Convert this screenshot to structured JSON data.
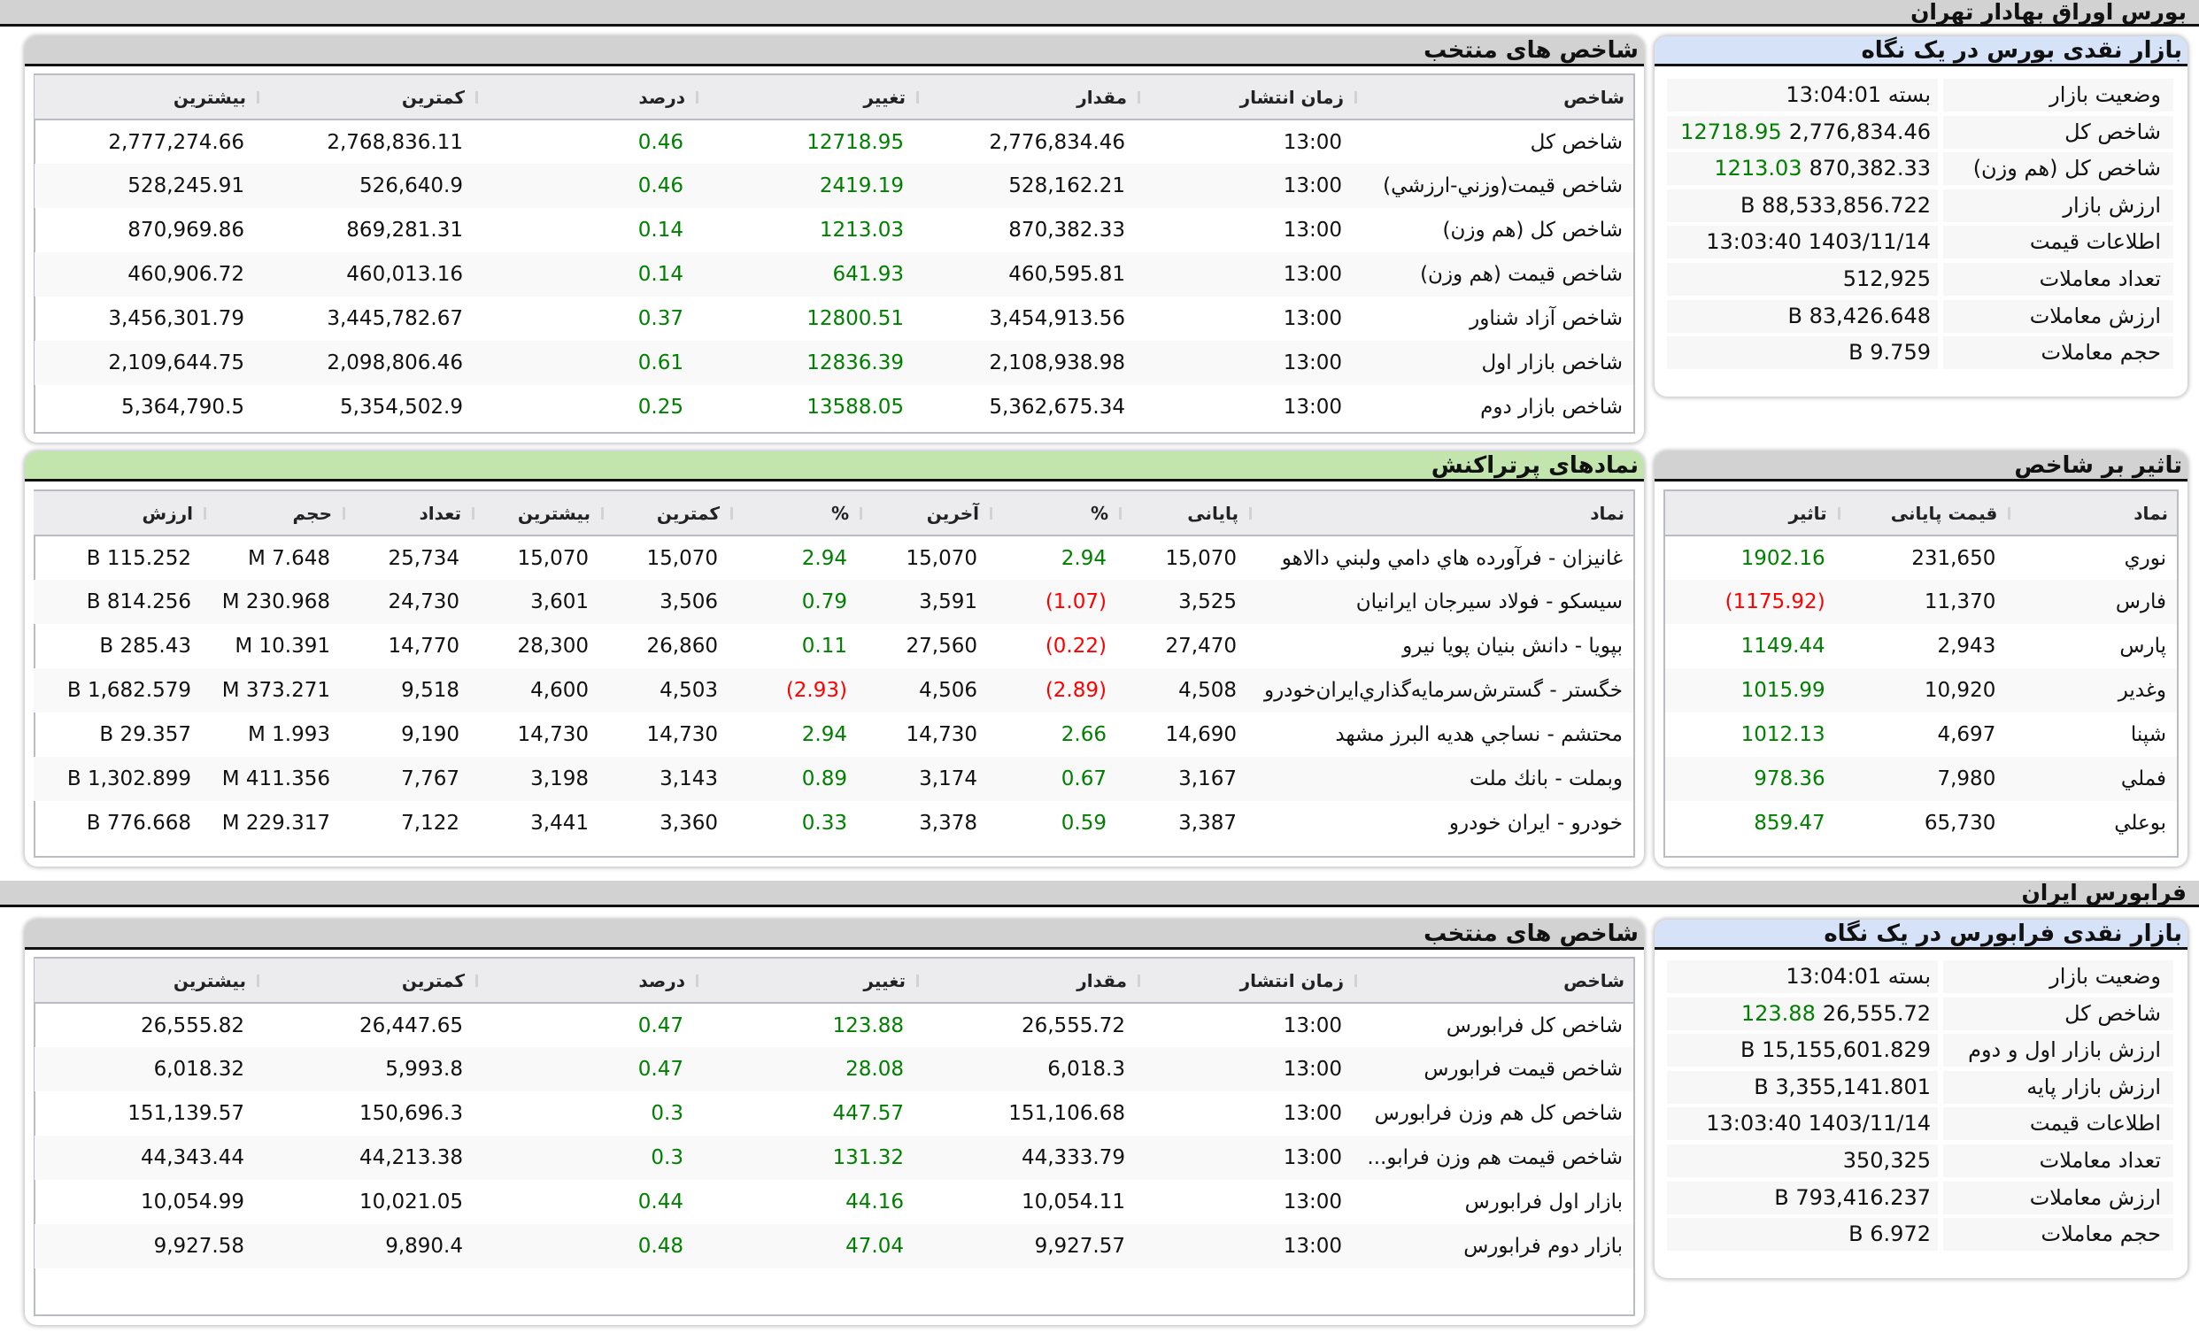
{
  "tse": {
    "title": "بورس اوراق بهادار تهران",
    "summary": {
      "title": "بازار نقدی بورس در یک نگاه",
      "rows": [
        {
          "label": "وضعیت بازار",
          "value": "بسته 13:04:01",
          "change": ""
        },
        {
          "label": "شاخص کل",
          "value": "2,776,834.46",
          "change": "12718.95"
        },
        {
          "label": "شاخص کل (هم وزن)",
          "value": "870,382.33",
          "change": "1213.03"
        },
        {
          "label": "ارزش بازار",
          "value": "88,533,856.722 B",
          "change": ""
        },
        {
          "label": "اطلاعات قیمت",
          "value": "1403/11/14 13:03:40",
          "change": ""
        },
        {
          "label": "تعداد معاملات",
          "value": "512,925",
          "change": ""
        },
        {
          "label": "ارزش معاملات",
          "value": "83,426.648 B",
          "change": ""
        },
        {
          "label": "حجم معاملات",
          "value": "9.759 B",
          "change": ""
        }
      ]
    },
    "indices": {
      "title": "شاخص های منتخب",
      "columns": [
        "شاخص",
        "زمان انتشار",
        "مقدار",
        "تغییر",
        "درصد",
        "کمترین",
        "بیشترین"
      ],
      "rows": [
        [
          "شاخص کل",
          "13:00",
          "2,776,834.46",
          "12718.95",
          "0.46",
          "2,768,836.11",
          "2,777,274.66"
        ],
        [
          "شاخص قيمت(وزني-ارزشي)",
          "13:00",
          "528,162.21",
          "2419.19",
          "0.46",
          "526,640.9",
          "528,245.91"
        ],
        [
          "شاخص کل (هم وزن)",
          "13:00",
          "870,382.33",
          "1213.03",
          "0.14",
          "869,281.31",
          "870,969.86"
        ],
        [
          "شاخص قیمت (هم وزن)",
          "13:00",
          "460,595.81",
          "641.93",
          "0.14",
          "460,013.16",
          "460,906.72"
        ],
        [
          "شاخص آزاد شناور",
          "13:00",
          "3,454,913.56",
          "12800.51",
          "0.37",
          "3,445,782.67",
          "3,456,301.79"
        ],
        [
          "شاخص بازار اول",
          "13:00",
          "2,108,938.98",
          "12836.39",
          "0.61",
          "2,098,806.46",
          "2,109,644.75"
        ],
        [
          "شاخص بازار دوم",
          "13:00",
          "5,362,675.34",
          "13588.05",
          "0.25",
          "5,354,502.9",
          "5,364,790.5"
        ]
      ]
    },
    "active": {
      "title": "نمادهای پرتراکنش",
      "columns": [
        "نماد",
        "پایانی",
        "%",
        "آخرین",
        "%",
        "کمترین",
        "بیشترین",
        "تعداد",
        "حجم",
        "ارزش"
      ],
      "rows": [
        [
          "غانيزان - فرآورده هاي دامي ولبني دالاهو",
          "15,070",
          "2.94",
          "15,070",
          "2.94",
          "15,070",
          "15,070",
          "25,734",
          "7.648 M",
          "115.252 B"
        ],
        [
          "سيسكو - فولاد سيرجان ايرانيان",
          "3,525",
          "(1.07)",
          "3,591",
          "0.79",
          "3,506",
          "3,601",
          "24,730",
          "230.968 M",
          "814.256 B"
        ],
        [
          "بپويا - دانش بنيان پويا نيرو",
          "27,470",
          "(0.22)",
          "27,560",
          "0.11",
          "26,860",
          "28,300",
          "14,770",
          "10.391 M",
          "285.43 B"
        ],
        [
          "خگستر - گسترش‌سرمايه‌گذاري‌ايران‌خودرو",
          "4,508",
          "(2.89)",
          "4,506",
          "(2.93)",
          "4,503",
          "4,600",
          "9,518",
          "373.271 M",
          "1,682.579 B"
        ],
        [
          "محتشم - نساجي هديه البرز مشهد",
          "14,690",
          "2.66",
          "14,730",
          "2.94",
          "14,730",
          "14,730",
          "9,190",
          "1.993 M",
          "29.357 B"
        ],
        [
          "وبملت - بانك ملت",
          "3,167",
          "0.67",
          "3,174",
          "0.89",
          "3,143",
          "3,198",
          "7,767",
          "411.356 M",
          "1,302.899 B"
        ],
        [
          "خودرو - ايران خودرو",
          "3,387",
          "0.59",
          "3,378",
          "0.33",
          "3,360",
          "3,441",
          "7,122",
          "229.317 M",
          "776.668 B"
        ]
      ]
    },
    "impact": {
      "title": "تاثیر بر شاخص",
      "columns": [
        "نماد",
        "قیمت پایانی",
        "تاثیر"
      ],
      "rows": [
        [
          "نوري",
          "231,650",
          "1902.16"
        ],
        [
          "فارس",
          "11,370",
          "(1175.92)"
        ],
        [
          "پارس",
          "2,943",
          "1149.44"
        ],
        [
          "وغدير",
          "10,920",
          "1015.99"
        ],
        [
          "شپنا",
          "4,697",
          "1012.13"
        ],
        [
          "فملي",
          "7,980",
          "978.36"
        ],
        [
          "بوعلي",
          "65,730",
          "859.47"
        ]
      ]
    }
  },
  "fara": {
    "title": "فرابورس ایران",
    "summary": {
      "title": "بازار نقدی فرابورس در یک نگاه",
      "rows": [
        {
          "label": "وضعیت بازار",
          "value": "بسته 13:04:01",
          "change": ""
        },
        {
          "label": "شاخص کل",
          "value": "26,555.72",
          "change": "123.88"
        },
        {
          "label": "ارزش بازار اول و دوم",
          "value": "15,155,601.829 B",
          "change": ""
        },
        {
          "label": "ارزش بازار پایه",
          "value": "3,355,141.801 B",
          "change": ""
        },
        {
          "label": "اطلاعات قیمت",
          "value": "1403/11/14 13:03:40",
          "change": ""
        },
        {
          "label": "تعداد معاملات",
          "value": "350,325",
          "change": ""
        },
        {
          "label": "ارزش معاملات",
          "value": "793,416.237 B",
          "change": ""
        },
        {
          "label": "حجم معاملات",
          "value": "6.972 B",
          "change": ""
        }
      ]
    },
    "indices": {
      "title": "شاخص های منتخب",
      "columns": [
        "شاخص",
        "زمان انتشار",
        "مقدار",
        "تغییر",
        "درصد",
        "کمترین",
        "بیشترین"
      ],
      "rows": [
        [
          "شاخص کل فرابورس",
          "13:00",
          "26,555.72",
          "123.88",
          "0.47",
          "26,447.65",
          "26,555.82"
        ],
        [
          "شاخص قیمت فرابورس",
          "13:00",
          "6,018.3",
          "28.08",
          "0.47",
          "5,993.8",
          "6,018.32"
        ],
        [
          "شاخص کل هم وزن فرابورس",
          "13:00",
          "151,106.68",
          "447.57",
          "0.3",
          "150,696.3",
          "151,139.57"
        ],
        [
          "شاخص قیمت هم وزن فرابو...",
          "13:00",
          "44,333.79",
          "131.32",
          "0.3",
          "44,213.38",
          "44,343.44"
        ],
        [
          "بازار اول فرابورس",
          "13:00",
          "10,054.11",
          "44.16",
          "0.44",
          "10,021.05",
          "10,054.99"
        ],
        [
          "بازار دوم فرابورس",
          "13:00",
          "9,927.57",
          "47.04",
          "0.48",
          "9,890.4",
          "9,927.58"
        ]
      ]
    }
  },
  "colors": {
    "positive": "#008000",
    "negative": "#ff0000",
    "summary_header": "#d6e2f7",
    "active_header": "#c2e5ad",
    "section_header": "#d2d2d2"
  }
}
